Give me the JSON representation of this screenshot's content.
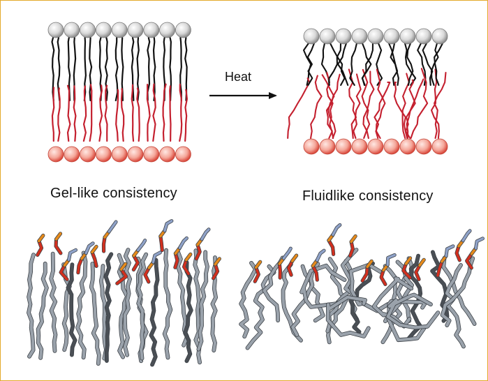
{
  "labels": {
    "heat": "Heat",
    "gel": "Gel-like consistency",
    "fluid": "Fluidlike consistency"
  },
  "colors": {
    "frame_border": "#e3a92a",
    "head_gray": "#d6d6d6",
    "head_red": "#f3a49a",
    "tail_black": "#111111",
    "tail_red": "#c4202f",
    "molecule_gray": "#9aa2ab",
    "molecule_dark": "#4a4f55",
    "molecule_red": "#d1301f",
    "molecule_orange": "#e58a1c",
    "molecule_blue": "#8fa2c8"
  }
}
